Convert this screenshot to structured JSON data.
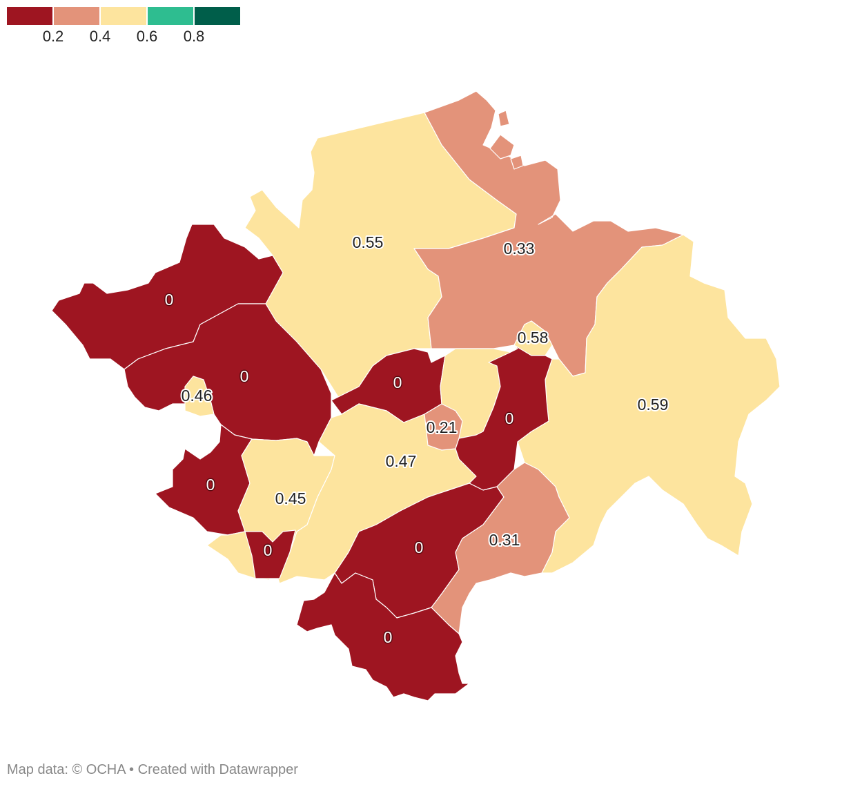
{
  "legend": {
    "colors": [
      "#9e1521",
      "#e3937a",
      "#fde49e",
      "#2ebd90",
      "#005e4a"
    ],
    "ticks": [
      "0.2",
      "0.4",
      "0.6",
      "0.8"
    ]
  },
  "regions": [
    {
      "id": "r-west-north",
      "value": 0,
      "label": "0",
      "color": "#9e1521"
    },
    {
      "id": "r-north-large",
      "value": 0.55,
      "label": "0.55",
      "color": "#fde49e"
    },
    {
      "id": "r-northeast",
      "value": 0.33,
      "label": "0.33",
      "color": "#e3937a"
    },
    {
      "id": "r-small-center",
      "value": 0.58,
      "label": "0.58",
      "color": "#fde49e"
    },
    {
      "id": "r-east-large",
      "value": 0.59,
      "label": "0.59",
      "color": "#fde49e"
    },
    {
      "id": "r-west-center",
      "value": 0,
      "label": "0",
      "color": "#9e1521"
    },
    {
      "id": "r-enclave",
      "value": 0.46,
      "label": "0.46",
      "color": "#fde49e"
    },
    {
      "id": "r-center-north",
      "value": 0,
      "label": "0",
      "color": "#9e1521"
    },
    {
      "id": "r-center-small",
      "value": 0.21,
      "label": "0.21",
      "color": "#e3937a"
    },
    {
      "id": "r-center-strip",
      "value": 0,
      "label": "0",
      "color": "#9e1521"
    },
    {
      "id": "r-center",
      "value": 0.47,
      "label": "0.47",
      "color": "#fde49e"
    },
    {
      "id": "r-west-south",
      "value": 0,
      "label": "0",
      "color": "#9e1521"
    },
    {
      "id": "r-southwest",
      "value": 0.45,
      "label": "0.45",
      "color": "#fde49e"
    },
    {
      "id": "r-southwest-small",
      "value": 0,
      "label": "0",
      "color": "#9e1521"
    },
    {
      "id": "r-south-center",
      "value": 0,
      "label": "0",
      "color": "#9e1521"
    },
    {
      "id": "r-southeast",
      "value": 0.31,
      "label": "0.31",
      "color": "#e3937a"
    },
    {
      "id": "r-south",
      "value": 0,
      "label": "0",
      "color": "#9e1521"
    }
  ],
  "footer": {
    "source": "Map data: © OCHA",
    "separator": "•",
    "credit": "Created with Datawrapper"
  }
}
